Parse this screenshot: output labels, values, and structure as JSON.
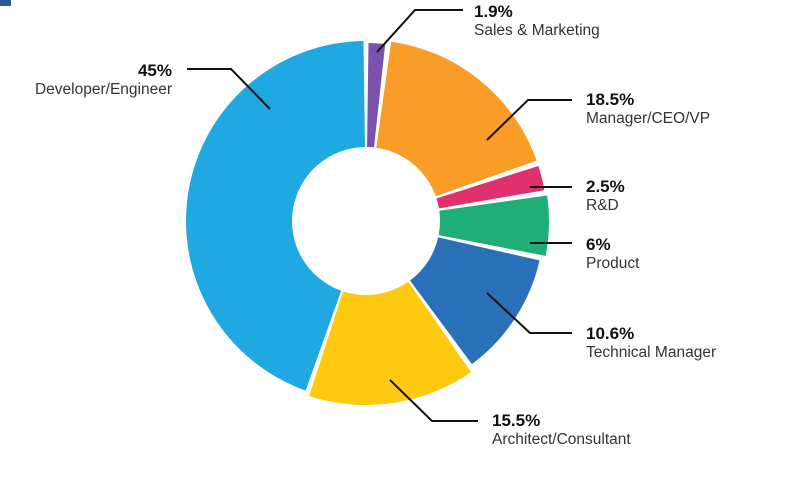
{
  "chart_data": {
    "type": "pie",
    "variant": "donut",
    "title": "",
    "legend": "none",
    "series": [
      {
        "name": "Sales & Marketing",
        "value": 1.9,
        "label": "1.9%",
        "color": "#7b52ab"
      },
      {
        "name": "Manager/CEO/VP",
        "value": 18.5,
        "label": "18.5%",
        "color": "#f99d28"
      },
      {
        "name": "R&D",
        "value": 2.5,
        "label": "2.5%",
        "color": "#e0306e"
      },
      {
        "name": "Product",
        "value": 6,
        "label": "6%",
        "color": "#1fae78"
      },
      {
        "name": "Technical Manager",
        "value": 10.6,
        "label": "10.6%",
        "color": "#2a70b8"
      },
      {
        "name": "Architect/Consultant",
        "value": 15.5,
        "label": "15.5%",
        "color": "#fec90f"
      },
      {
        "name": "Developer/Engineer",
        "value": 45,
        "label": "45%",
        "color": "#20a8e0"
      }
    ]
  },
  "colors": {
    "leader_line": "#111111",
    "corner_mark": "#2e5b8f"
  }
}
